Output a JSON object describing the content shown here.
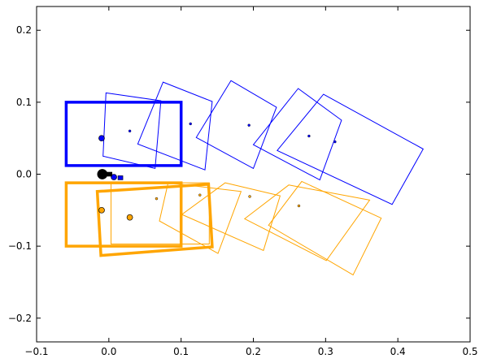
{
  "chart_data": {
    "type": "scatter",
    "title": "",
    "xlabel": "",
    "ylabel": "",
    "xlim": [
      -0.1,
      0.5
    ],
    "ylim": [
      -0.233,
      0.233
    ],
    "x_ticks": [
      -0.1,
      0.0,
      0.1,
      0.2,
      0.3,
      0.4,
      0.5
    ],
    "x_tick_labels": [
      "−0.1",
      "0.0",
      "0.1",
      "0.2",
      "0.3",
      "0.4",
      "0.5"
    ],
    "y_ticks": [
      -0.2,
      -0.1,
      0.0,
      0.1,
      0.2
    ],
    "y_tick_labels": [
      "−0.2",
      "−0.1",
      "0.0",
      "0.1",
      "0.2"
    ],
    "grid": false,
    "colors": {
      "blue": "#0000ff",
      "orange": "#ffa500",
      "black": "#000000"
    },
    "series": [
      {
        "color": "blue",
        "rectangles": [
          {
            "emphasis": "bold",
            "corners": [
              [
                -0.059,
                0.1
              ],
              [
                0.1,
                0.1
              ],
              [
                0.1,
                0.012
              ],
              [
                -0.059,
                0.012
              ]
            ]
          },
          {
            "emphasis": "thin",
            "corners": [
              [
                -0.004,
                0.113
              ],
              [
                0.072,
                0.102
              ],
              [
                0.064,
                0.008
              ],
              [
                -0.008,
                0.025
              ]
            ]
          },
          {
            "emphasis": "thin",
            "corners": [
              [
                0.075,
                0.128
              ],
              [
                0.143,
                0.101
              ],
              [
                0.133,
                0.006
              ],
              [
                0.04,
                0.042
              ]
            ]
          },
          {
            "emphasis": "thin",
            "corners": [
              [
                0.169,
                0.13
              ],
              [
                0.232,
                0.093
              ],
              [
                0.2,
                0.008
              ],
              [
                0.121,
                0.051
              ]
            ]
          },
          {
            "emphasis": "thin",
            "corners": [
              [
                0.262,
                0.119
              ],
              [
                0.322,
                0.075
              ],
              [
                0.292,
                -0.008
              ],
              [
                0.2,
                0.041
              ]
            ]
          },
          {
            "emphasis": "thin",
            "corners": [
              [
                0.297,
                0.111
              ],
              [
                0.435,
                0.035
              ],
              [
                0.392,
                -0.042
              ],
              [
                0.233,
                0.033
              ]
            ]
          }
        ],
        "points": [
          {
            "x": -0.01,
            "y": 0.05,
            "size": "medium"
          },
          {
            "x": 0.029,
            "y": 0.06,
            "size": "tiny"
          },
          {
            "x": 0.113,
            "y": 0.07,
            "size": "tiny"
          },
          {
            "x": 0.194,
            "y": 0.068,
            "size": "tiny"
          },
          {
            "x": 0.277,
            "y": 0.053,
            "size": "tiny"
          },
          {
            "x": 0.313,
            "y": 0.045,
            "size": "tiny"
          },
          {
            "x": 0.007,
            "y": -0.004,
            "size": "medium"
          },
          {
            "x": 0.016,
            "y": -0.005,
            "size": "square"
          }
        ]
      },
      {
        "color": "orange",
        "rectangles": [
          {
            "emphasis": "bold",
            "corners": [
              [
                -0.059,
                -0.012
              ],
              [
                0.1,
                -0.012
              ],
              [
                0.1,
                -0.1
              ],
              [
                -0.059,
                -0.1
              ]
            ]
          },
          {
            "emphasis": "bold",
            "corners": [
              [
                -0.016,
                -0.024
              ],
              [
                0.138,
                -0.014
              ],
              [
                0.143,
                -0.101
              ],
              [
                -0.011,
                -0.113
              ]
            ]
          },
          {
            "emphasis": "thin",
            "corners": [
              [
                0.003,
                -0.012
              ],
              [
                0.139,
                -0.012
              ],
              [
                0.139,
                -0.097
              ],
              [
                0.003,
                -0.097
              ]
            ]
          },
          {
            "emphasis": "thin",
            "corners": [
              [
                0.082,
                -0.012
              ],
              [
                0.183,
                -0.024
              ],
              [
                0.151,
                -0.11
              ],
              [
                0.07,
                -0.065
              ]
            ]
          },
          {
            "emphasis": "thin",
            "corners": [
              [
                0.161,
                -0.012
              ],
              [
                0.237,
                -0.03
              ],
              [
                0.214,
                -0.106
              ],
              [
                0.101,
                -0.056
              ]
            ]
          },
          {
            "emphasis": "thin",
            "corners": [
              [
                0.249,
                -0.015
              ],
              [
                0.361,
                -0.036
              ],
              [
                0.301,
                -0.12
              ],
              [
                0.188,
                -0.062
              ]
            ]
          },
          {
            "emphasis": "thin",
            "corners": [
              [
                0.267,
                -0.01
              ],
              [
                0.377,
                -0.061
              ],
              [
                0.338,
                -0.14
              ],
              [
                0.221,
                -0.071
              ]
            ]
          }
        ],
        "points": [
          {
            "x": -0.01,
            "y": -0.05,
            "size": "medium"
          },
          {
            "x": 0.029,
            "y": -0.06,
            "size": "medium"
          },
          {
            "x": 0.066,
            "y": -0.034,
            "size": "tiny"
          },
          {
            "x": 0.126,
            "y": -0.029,
            "size": "tiny"
          },
          {
            "x": 0.195,
            "y": -0.031,
            "size": "tiny"
          },
          {
            "x": 0.263,
            "y": -0.044,
            "size": "tiny"
          }
        ]
      },
      {
        "color": "black",
        "points": [
          {
            "x": -0.009,
            "y": 0.0,
            "size": "large"
          },
          {
            "x": 0.001,
            "y": 0.0,
            "size": "square"
          }
        ]
      }
    ]
  }
}
